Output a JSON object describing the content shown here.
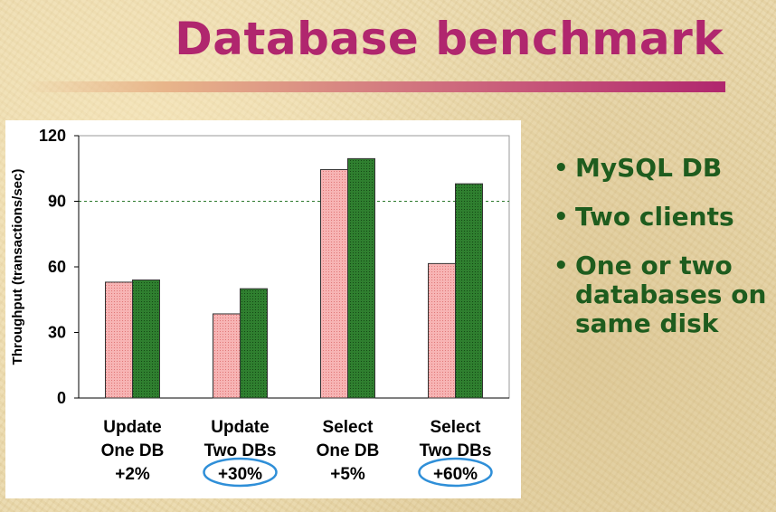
{
  "slide": {
    "title": "Database benchmark",
    "bullets": [
      {
        "text": "MySQL DB"
      },
      {
        "text": "Two clients"
      },
      {
        "text": "One or two databases on same disk"
      }
    ]
  },
  "colors": {
    "title": "#b0266e",
    "bullet_text": "#1e5c1e",
    "series_one": "#f5a5a5",
    "series_two": "#2e7a2e",
    "highlight_ellipse": "#2f8fd8"
  },
  "chart_data": {
    "type": "bar",
    "ylabel": "Throughput (transactions/sec)",
    "ylim": [
      0,
      120
    ],
    "yticks": [
      0,
      30,
      60,
      90,
      120
    ],
    "reference_line": 90,
    "grid": false,
    "categories": [
      {
        "lines": [
          "Update",
          "One DB",
          "+2%"
        ],
        "highlighted": false
      },
      {
        "lines": [
          "Update",
          "Two DBs",
          "+30%"
        ],
        "highlighted": true
      },
      {
        "lines": [
          "Select",
          "One DB",
          "+5%"
        ],
        "highlighted": false
      },
      {
        "lines": [
          "Select",
          "Two DBs",
          "+60%"
        ],
        "highlighted": true
      }
    ],
    "series": [
      {
        "values": [
          53,
          38.5,
          104.5,
          61.5
        ],
        "color": "#f5a5a5"
      },
      {
        "values": [
          54,
          50,
          109.5,
          98
        ],
        "color": "#2e7a2e"
      }
    ]
  }
}
